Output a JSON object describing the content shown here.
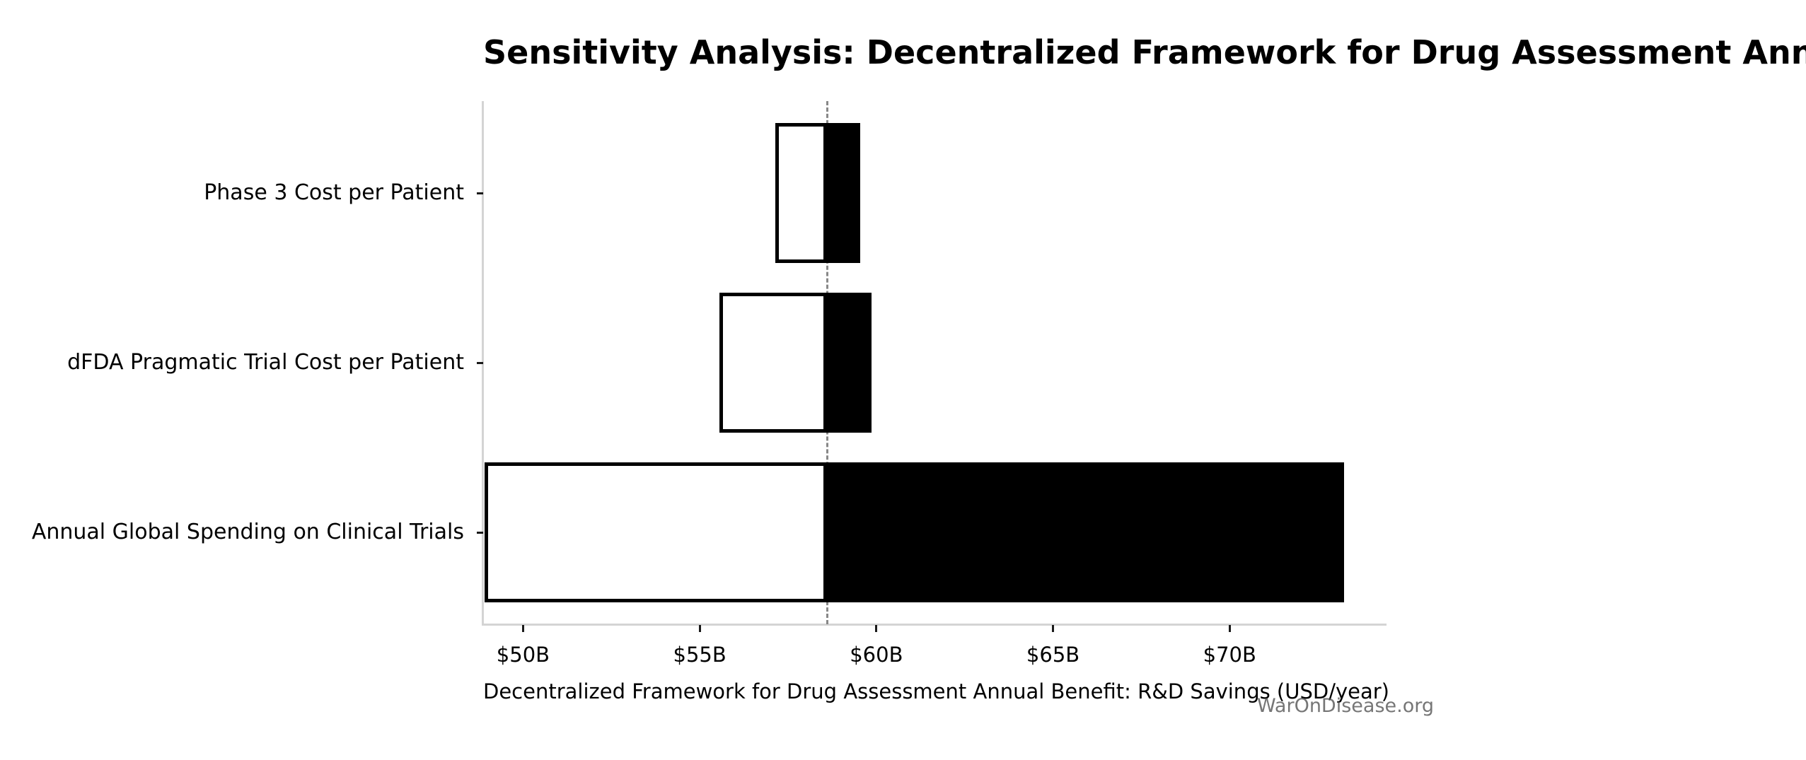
{
  "watermark": "WarOnDisease.org",
  "chart_data": {
    "type": "bar",
    "subtype": "tornado-sensitivity",
    "orientation": "horizontal",
    "title": "Sensitivity Analysis: Decentralized Framework for Drug Assessment Annual Benefit: R&D Savings",
    "xlabel": "Decentralized Framework for Drug Assessment Annual Benefit: R&D Savings (USD/year)",
    "ylabel": "",
    "unit": "USD billions per year",
    "baseline_value": 58.61,
    "xlim": [
      48.87,
      74.42
    ],
    "x_ticks": [
      {
        "value": 50,
        "label": "$50B"
      },
      {
        "value": 55,
        "label": "$55B"
      },
      {
        "value": 60,
        "label": "$60B"
      },
      {
        "value": 65,
        "label": "$65B"
      },
      {
        "value": 70,
        "label": "$70B"
      }
    ],
    "categories": [
      "Phase 3 Cost per Patient",
      "dFDA Pragmatic Trial Cost per Patient",
      "Annual Global Spending on Clinical Trials"
    ],
    "bars": [
      {
        "label": "Phase 3 Cost per Patient",
        "low": 57.13,
        "high": 59.54
      },
      {
        "label": "dFDA Pragmatic Trial Cost per Patient",
        "low": 55.55,
        "high": 59.86
      },
      {
        "label": "Annual Global Spending on Clinical Trials",
        "low": 48.91,
        "high": 73.24
      }
    ],
    "grid": false,
    "legend": "none",
    "colors": {
      "low_segment_fill": "#ffffff",
      "high_segment_fill": "#000000",
      "bar_edge": "#000000",
      "baseline_line": "#888888",
      "spine": "#d4d4d4",
      "tick": "#1a1a1a",
      "text": "#000000",
      "watermark": "#555555"
    }
  }
}
